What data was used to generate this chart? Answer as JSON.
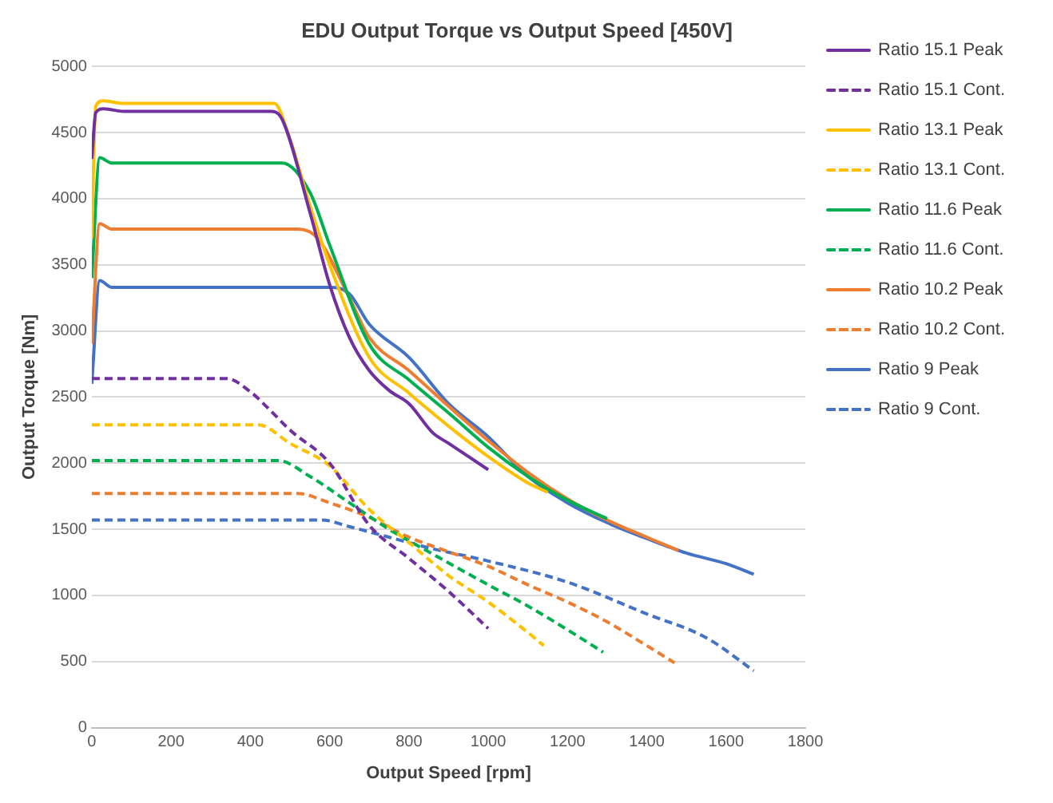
{
  "chart_data": {
    "type": "line",
    "title": "EDU Output Torque vs Output Speed [450V]",
    "xlabel": "Output Speed [rpm]",
    "ylabel": "Output Torque [Nm]",
    "xlim": [
      0,
      1800
    ],
    "xticks": [
      0,
      200,
      400,
      600,
      800,
      1000,
      1200,
      1400,
      1600,
      1800
    ],
    "ylim": [
      0,
      5000
    ],
    "yticks": [
      0,
      500,
      1000,
      1500,
      2000,
      2500,
      3000,
      3500,
      4000,
      4500,
      5000
    ],
    "grid": "y",
    "legend": "right",
    "marker": "none",
    "series": [
      {
        "name": "Ratio 15.1 Peak",
        "color": "#7030a0",
        "line_style": "solid",
        "x": [
          0,
          10,
          30,
          80,
          450,
          480,
          550,
          600,
          650,
          700,
          750,
          800,
          860,
          900,
          1000
        ],
        "values": [
          4300,
          4650,
          4680,
          4660,
          4660,
          4600,
          3900,
          3350,
          2950,
          2700,
          2550,
          2450,
          2230,
          2150,
          1950
        ]
      },
      {
        "name": "Ratio 15.1 Cont.",
        "color": "#7030a0",
        "line_style": "dashed",
        "x": [
          0,
          340,
          400,
          450,
          500,
          600,
          700,
          800,
          900,
          1000
        ],
        "values": [
          2640,
          2640,
          2540,
          2400,
          2250,
          2000,
          1530,
          1280,
          1030,
          750
        ]
      },
      {
        "name": "Ratio 13.1 Peak",
        "color": "#ffc000",
        "line_style": "solid",
        "x": [
          0,
          10,
          30,
          80,
          460,
          500,
          550,
          600,
          700,
          800,
          900,
          1000,
          1100,
          1150
        ],
        "values": [
          3700,
          4700,
          4740,
          4720,
          4720,
          4450,
          3950,
          3500,
          2800,
          2530,
          2280,
          2050,
          1850,
          1780
        ]
      },
      {
        "name": "Ratio 13.1 Cont.",
        "color": "#ffc000",
        "line_style": "dashed",
        "x": [
          0,
          420,
          500,
          600,
          700,
          800,
          900,
          1000,
          1100,
          1140
        ],
        "values": [
          2290,
          2290,
          2150,
          1980,
          1650,
          1400,
          1150,
          950,
          720,
          620
        ]
      },
      {
        "name": "Ratio 11.6 Peak",
        "color": "#00b050",
        "line_style": "solid",
        "x": [
          0,
          20,
          50,
          480,
          550,
          600,
          700,
          800,
          900,
          1000,
          1100,
          1200,
          1300
        ],
        "values": [
          3400,
          4310,
          4270,
          4270,
          4050,
          3650,
          2900,
          2630,
          2380,
          2120,
          1900,
          1720,
          1580
        ]
      },
      {
        "name": "Ratio 11.6 Cont.",
        "color": "#00b050",
        "line_style": "dashed",
        "x": [
          0,
          470,
          550,
          650,
          750,
          850,
          1000,
          1100,
          1200,
          1290
        ],
        "values": [
          2020,
          2020,
          1900,
          1700,
          1500,
          1330,
          1080,
          920,
          740,
          570
        ]
      },
      {
        "name": "Ratio 10.2 Peak",
        "color": "#ed7d31",
        "line_style": "solid",
        "x": [
          0,
          20,
          50,
          520,
          570,
          650,
          700,
          800,
          900,
          1000,
          1100,
          1200,
          1300,
          1400,
          1480
        ],
        "values": [
          2900,
          3810,
          3770,
          3770,
          3700,
          3250,
          2950,
          2700,
          2430,
          2170,
          1930,
          1730,
          1570,
          1440,
          1340
        ]
      },
      {
        "name": "Ratio 10.2 Cont.",
        "color": "#ed7d31",
        "line_style": "dashed",
        "x": [
          0,
          520,
          600,
          700,
          800,
          900,
          1000,
          1100,
          1200,
          1300,
          1400,
          1470
        ],
        "values": [
          1770,
          1770,
          1700,
          1590,
          1440,
          1330,
          1220,
          1080,
          950,
          800,
          620,
          490
        ]
      },
      {
        "name": "Ratio 9 Peak",
        "color": "#4472c4",
        "line_style": "solid",
        "x": [
          0,
          20,
          50,
          600,
          650,
          700,
          800,
          900,
          1000,
          1100,
          1200,
          1300,
          1400,
          1500,
          1600,
          1670
        ],
        "values": [
          2600,
          3380,
          3330,
          3330,
          3280,
          3050,
          2800,
          2450,
          2200,
          1900,
          1700,
          1550,
          1430,
          1320,
          1240,
          1160
        ]
      },
      {
        "name": "Ratio 9 Cont.",
        "color": "#4472c4",
        "line_style": "dashed",
        "x": [
          0,
          580,
          650,
          750,
          850,
          1000,
          1200,
          1400,
          1550,
          1670
        ],
        "values": [
          1570,
          1570,
          1520,
          1440,
          1360,
          1260,
          1100,
          860,
          680,
          430
        ]
      }
    ]
  }
}
